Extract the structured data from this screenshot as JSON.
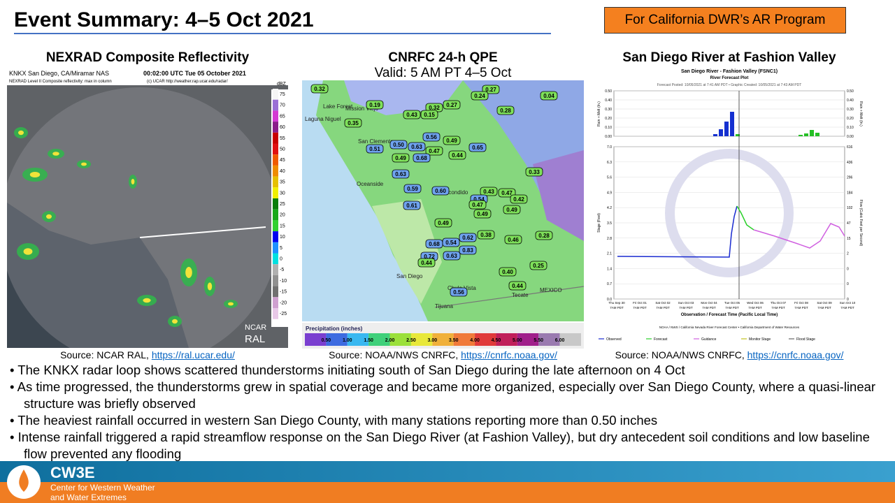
{
  "header": {
    "title": "Event Summary: 4–5 Oct 2021",
    "badge": "For California DWR’s AR Program"
  },
  "panels": [
    {
      "title": "NEXRAD Composite Reflectivity",
      "source": "Source: NCAR RAL,",
      "link": "https://ral.ucar.edu/"
    },
    {
      "title": "CNRFC 24-h QPE",
      "subtitle": "Valid: 5 AM PT 4–5 Oct",
      "source": "Source: NOAA/NWS CNRFC,",
      "link": "https://cnrfc.noaa.gov/"
    },
    {
      "title": "San Diego River at Fashion Valley",
      "source": "Source: NOAA/NWS CNRFC,",
      "link": "https://cnrfc.noaa.gov/"
    }
  ],
  "radar": {
    "site": "KNKX San Diego, CA/Miramar NAS",
    "time": "00:02:00 UTC Tue 05 October 2021",
    "product": "NEXRAD Level II Composite reflectivity: max in column",
    "credit": "(c) UCAR http://weather.rap.ucar.edu/radar/",
    "scale_unit": "dBZ",
    "scale_labels": [
      "75",
      "70",
      "65",
      "60",
      "55",
      "50",
      "45",
      "40",
      "35",
      "30",
      "25",
      "20",
      "15",
      "10",
      "5",
      "0",
      "-5",
      "-10",
      "-15",
      "-20",
      "-25"
    ],
    "logo_top": "NCAR",
    "logo_bottom": "RAL"
  },
  "qpe": {
    "stations": [
      "0.32",
      "0.19",
      "0.27",
      "0.24",
      "0.04",
      "0.32",
      "0.27",
      "0.43",
      "0.15",
      "0.28",
      "0.35",
      "0.56",
      "0.49",
      "0.51",
      "0.50",
      "0.63",
      "0.47",
      "0.44",
      "0.65",
      "0.49",
      "0.68",
      "0.33",
      "0.63",
      "0.59",
      "0.60",
      "0.43",
      "0.47",
      "0.54",
      "0.42",
      "0.61",
      "0.47",
      "0.49",
      "0.49",
      "0.49",
      "0.28",
      "0.62",
      "0.38",
      "0.46",
      "0.68",
      "0.54",
      "0.83",
      "0.72",
      "0.63",
      "0.44",
      "0.25",
      "0.40",
      "0.44",
      "0.56"
    ],
    "places": [
      "Lake Forest",
      "Mission Viejo",
      "Laguna Niguel",
      "San Clemente",
      "Oceanside",
      "Escondido",
      "San Diego",
      "Chula Vista",
      "Tijuana",
      "MEXICO",
      "Tecate"
    ],
    "colorbar_title": "Precipitation (inches)",
    "colorbar_labels": [
      "0.50",
      "1.00",
      "1.50",
      "2.00",
      "2.50",
      "3.00",
      "3.50",
      "4.00",
      "4.50",
      "5.00",
      "5.50",
      "6.00"
    ]
  },
  "hydrograph": {
    "title": "San Diego River - Fashion Valley (FSNC1)",
    "subtitle": "River Forecast Plot",
    "posted": "Forecast Posted: 10/05/2021 at 7:41 AM PDT • Graphic Created: 10/05/2021 at 7:43 AM PDT",
    "rain_axis": "Rain + Melt (In.)",
    "rain_ticks": [
      "0.50",
      "0.40",
      "0.30",
      "0.20",
      "0.10",
      "0.00"
    ],
    "stage_axis": "Stage (Feet)",
    "stage_ticks": [
      "7.0",
      "6.3",
      "5.6",
      "4.9",
      "4.2",
      "3.5",
      "2.8",
      "2.1",
      "1.4",
      "0.7",
      "0.0"
    ],
    "flow_axis": "Flow (Cubic Feet per Second)",
    "flow_ticks": [
      "616",
      "436",
      "296",
      "184",
      "102",
      "47",
      "15",
      "2",
      "0",
      "0",
      "0"
    ],
    "x_labels": [
      "Thu Sep 30",
      "Fri Oct 01",
      "Sat Oct 02",
      "Sun Oct 03",
      "Mon Oct 04",
      "Tue Oct 05",
      "Wed Oct 06",
      "Thu Oct 07",
      "Fri Oct 08",
      "Sat Oct 09",
      "Sun Oct 10"
    ],
    "x_time": "7AM PDT",
    "x_title": "Observation / Forecast Time (Pacific Local Time)",
    "credit": "NOAA / NWS / California Nevada River Forecast Center • California Department of Water Resources",
    "legend": [
      "Observed",
      "Forecast",
      "Guidance",
      "Monitor Stage",
      "Flood Stage"
    ]
  },
  "bullets": [
    "The KNKX radar loop shows scattered thunderstorms initiating south of San Diego during the late afternoon on 4 Oct",
    "As time progressed, the thunderstorms grew in spatial coverage and became more organized, especially over San Diego County, where a quasi-linear structure was briefly observed",
    "The heaviest rainfall occurred in western San Diego County, with many stations reporting more than 0.50 inches",
    "Intense rainfall triggered a rapid streamflow response on the San Diego River (at Fashion Valley), but dry antecedent soil conditions and low baseline flow prevented any flooding"
  ],
  "footer": {
    "logo": "CW3E",
    "org_line1": "Center for Western Weather",
    "org_line2": "and Water Extremes"
  }
}
